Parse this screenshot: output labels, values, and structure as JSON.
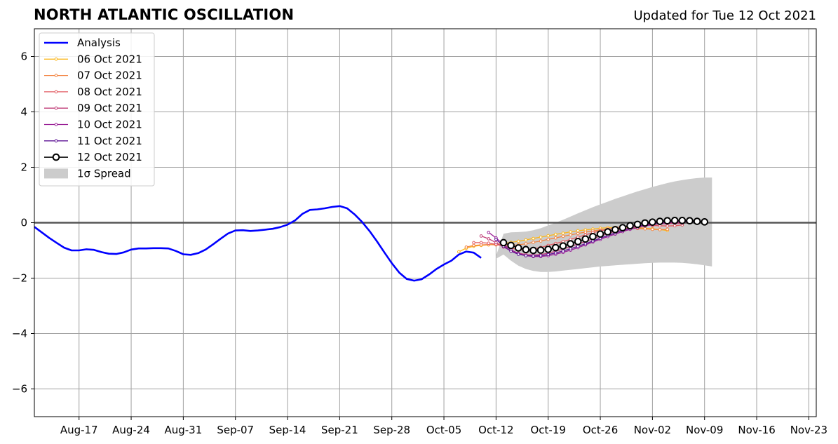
{
  "header": {
    "title": "NORTH ATLANTIC OSCILLATION",
    "updated": "Updated for Tue 12 Oct 2021"
  },
  "chart_data": {
    "type": "line",
    "title": "NORTH ATLANTIC OSCILLATION",
    "xlabel": "",
    "ylabel": "",
    "x_axis": "date",
    "xlim": [
      "2021-08-11",
      "2021-11-24"
    ],
    "ylim": [
      -7,
      7
    ],
    "grid": true,
    "legend_position": "upper-left",
    "x_ticks": [
      {
        "date": "2021-08-17",
        "label": "Aug-17"
      },
      {
        "date": "2021-08-24",
        "label": "Aug-24"
      },
      {
        "date": "2021-08-31",
        "label": "Aug-31"
      },
      {
        "date": "2021-09-07",
        "label": "Sep-07"
      },
      {
        "date": "2021-09-14",
        "label": "Sep-14"
      },
      {
        "date": "2021-09-21",
        "label": "Sep-21"
      },
      {
        "date": "2021-09-28",
        "label": "Sep-28"
      },
      {
        "date": "2021-10-05",
        "label": "Oct-05"
      },
      {
        "date": "2021-10-12",
        "label": "Oct-12"
      },
      {
        "date": "2021-10-19",
        "label": "Oct-19"
      },
      {
        "date": "2021-10-26",
        "label": "Oct-26"
      },
      {
        "date": "2021-11-02",
        "label": "Nov-02"
      },
      {
        "date": "2021-11-09",
        "label": "Nov-09"
      },
      {
        "date": "2021-11-16",
        "label": "Nov-16"
      },
      {
        "date": "2021-11-23",
        "label": "Nov-23"
      }
    ],
    "y_ticks": [
      {
        "value": 6,
        "label": "6"
      },
      {
        "value": 4,
        "label": "4"
      },
      {
        "value": 2,
        "label": "2"
      },
      {
        "value": 0,
        "label": "0"
      },
      {
        "value": -2,
        "label": "−2"
      },
      {
        "value": -4,
        "label": "−4"
      },
      {
        "value": -6,
        "label": "−6"
      }
    ],
    "series": [
      {
        "name": "Analysis",
        "color": "#0000ff",
        "style": "thick-line",
        "start_date": "2021-08-11",
        "values": [
          -0.15,
          -0.35,
          -0.55,
          -0.73,
          -0.9,
          -1.0,
          -1.0,
          -0.96,
          -0.98,
          -1.06,
          -1.12,
          -1.13,
          -1.07,
          -0.97,
          -0.93,
          -0.93,
          -0.92,
          -0.92,
          -0.93,
          -1.02,
          -1.14,
          -1.16,
          -1.1,
          -0.97,
          -0.78,
          -0.58,
          -0.39,
          -0.28,
          -0.27,
          -0.3,
          -0.28,
          -0.25,
          -0.22,
          -0.16,
          -0.07,
          0.08,
          0.32,
          0.46,
          0.48,
          0.52,
          0.57,
          0.6,
          0.52,
          0.3,
          0.03,
          -0.3,
          -0.67,
          -1.07,
          -1.46,
          -1.8,
          -2.03,
          -2.09,
          -2.04,
          -1.87,
          -1.67,
          -1.51,
          -1.37,
          -1.15,
          -1.04,
          -1.08,
          -1.27
        ]
      },
      {
        "name": "06 Oct 2021",
        "color": "#fbb61a",
        "style": "small-marker",
        "start_date": "2021-10-07",
        "values": [
          -1.05,
          -0.92,
          -0.85,
          -0.82,
          -0.8,
          -0.78,
          -0.75,
          -0.71,
          -0.67,
          -0.62,
          -0.57,
          -0.52,
          -0.47,
          -0.42,
          -0.38,
          -0.33,
          -0.29,
          -0.26,
          -0.23,
          -0.2,
          -0.18,
          -0.17,
          -0.16,
          -0.16,
          -0.18,
          -0.2,
          -0.22,
          -0.25,
          -0.28
        ]
      },
      {
        "name": "07 Oct 2021",
        "color": "#f3823f",
        "style": "small-marker",
        "start_date": "2021-10-08",
        "values": [
          -0.88,
          -0.82,
          -0.8,
          -0.79,
          -0.8,
          -0.82,
          -0.82,
          -0.8,
          -0.76,
          -0.71,
          -0.66,
          -0.6,
          -0.55,
          -0.49,
          -0.44,
          -0.39,
          -0.34,
          -0.3,
          -0.26,
          -0.23,
          -0.21,
          -0.2,
          -0.2,
          -0.21,
          -0.22,
          -0.24,
          -0.25,
          -0.24
        ]
      },
      {
        "name": "08 Oct 2021",
        "color": "#e25a60",
        "style": "small-marker",
        "start_date": "2021-10-09",
        "values": [
          -0.72,
          -0.72,
          -0.74,
          -0.78,
          -0.85,
          -0.92,
          -0.97,
          -0.98,
          -0.95,
          -0.89,
          -0.82,
          -0.75,
          -0.68,
          -0.6,
          -0.52,
          -0.44,
          -0.36,
          -0.3,
          -0.24,
          -0.19,
          -0.15,
          -0.13,
          -0.11,
          -0.1,
          -0.1,
          -0.11,
          -0.12,
          -0.11,
          -0.08
        ]
      },
      {
        "name": "09 Oct 2021",
        "color": "#c13d78",
        "style": "small-marker",
        "start_date": "2021-10-10",
        "values": [
          -0.48,
          -0.58,
          -0.72,
          -0.88,
          -1.01,
          -1.1,
          -1.15,
          -1.17,
          -1.15,
          -1.1,
          -1.03,
          -0.95,
          -0.86,
          -0.77,
          -0.68,
          -0.58,
          -0.48,
          -0.39,
          -0.31,
          -0.24,
          -0.18,
          -0.13,
          -0.09,
          -0.06,
          -0.04,
          -0.03,
          -0.02,
          -0.02
        ]
      },
      {
        "name": "10 Oct 2021",
        "color": "#9a1f96",
        "style": "small-marker",
        "start_date": "2021-10-11",
        "values": [
          -0.35,
          -0.55,
          -0.79,
          -0.98,
          -1.11,
          -1.19,
          -1.22,
          -1.22,
          -1.19,
          -1.14,
          -1.07,
          -0.99,
          -0.9,
          -0.8,
          -0.7,
          -0.6,
          -0.5,
          -0.41,
          -0.32,
          -0.24,
          -0.18,
          -0.12,
          -0.07,
          -0.03,
          0.0,
          0.02,
          0.03,
          0.03
        ]
      },
      {
        "name": "11 Oct 2021",
        "color": "#5c1294",
        "style": "small-marker",
        "start_date": "2021-10-12",
        "values": [
          -0.6,
          -0.85,
          -1.03,
          -1.14,
          -1.19,
          -1.2,
          -1.19,
          -1.15,
          -1.09,
          -1.02,
          -0.94,
          -0.85,
          -0.76,
          -0.66,
          -0.56,
          -0.46,
          -0.37,
          -0.28,
          -0.2,
          -0.13,
          -0.07,
          -0.02,
          0.02,
          0.04,
          0.05,
          0.05,
          0.04,
          0.03
        ]
      },
      {
        "name": "12 Oct 2021",
        "color": "#000000",
        "style": "big-marker",
        "start_date": "2021-10-13",
        "values": [
          -0.72,
          -0.82,
          -0.91,
          -0.97,
          -1.0,
          -0.99,
          -0.96,
          -0.9,
          -0.84,
          -0.76,
          -0.68,
          -0.59,
          -0.5,
          -0.41,
          -0.33,
          -0.25,
          -0.18,
          -0.11,
          -0.06,
          -0.01,
          0.02,
          0.05,
          0.07,
          0.08,
          0.08,
          0.07,
          0.05,
          0.03
        ]
      }
    ],
    "spread": {
      "name": "1σ Spread",
      "color": "#cccccc",
      "start_date": "2021-10-12",
      "end_date": "2021-11-10",
      "upper": [
        -1.2,
        -0.4,
        -0.35,
        -0.34,
        -0.32,
        -0.27,
        -0.2,
        -0.1,
        0.0,
        0.11,
        0.22,
        0.34,
        0.45,
        0.56,
        0.66,
        0.76,
        0.86,
        0.95,
        1.04,
        1.13,
        1.21,
        1.29,
        1.36,
        1.43,
        1.49,
        1.54,
        1.58,
        1.61,
        1.63,
        1.63
      ],
      "lower": [
        -1.3,
        -1.15,
        -1.37,
        -1.55,
        -1.67,
        -1.74,
        -1.78,
        -1.78,
        -1.76,
        -1.73,
        -1.7,
        -1.67,
        -1.64,
        -1.61,
        -1.58,
        -1.56,
        -1.54,
        -1.52,
        -1.5,
        -1.48,
        -1.46,
        -1.45,
        -1.44,
        -1.44,
        -1.44,
        -1.45,
        -1.47,
        -1.5,
        -1.54,
        -1.58
      ]
    }
  }
}
